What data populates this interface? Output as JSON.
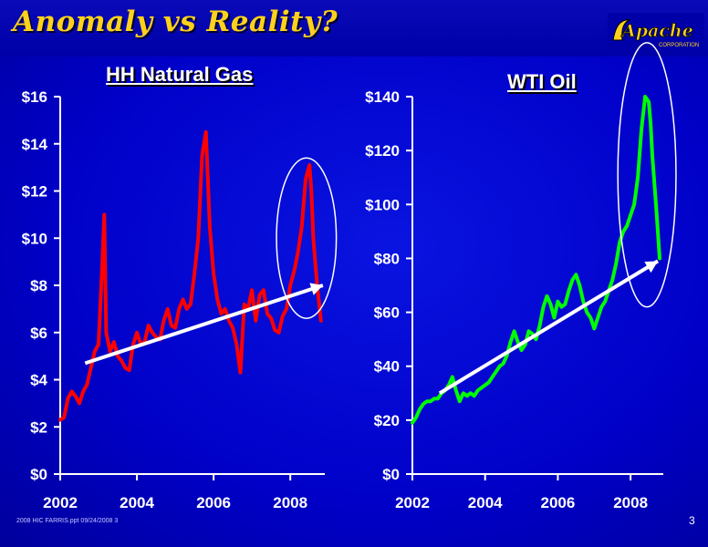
{
  "slide": {
    "title": "Anomaly vs Reality?",
    "footer": "2008 HIC FARRIS.ppt  09/24/2008 3",
    "page_number": "3",
    "logo": {
      "main_text": "Apache",
      "sub_text": "CORPORATION",
      "icon": "apache-logo-icon"
    }
  },
  "colors": {
    "background": "#0000c8",
    "title": "#ffd21a",
    "gas_series": "#ff0000",
    "oil_series": "#00ff00",
    "trend_arrow": "#ffffff",
    "highlight_ellipse": "#ffffff"
  },
  "chart_data": [
    {
      "type": "line",
      "title": "HH Natural Gas",
      "xlabel": "",
      "ylabel": "",
      "xlim": [
        2002,
        2008.9
      ],
      "ylim": [
        0,
        16
      ],
      "x_ticks": [
        "2002",
        "2004",
        "2006",
        "2008"
      ],
      "y_ticks": [
        "$0",
        "$2",
        "$4",
        "$6",
        "$8",
        "$10",
        "$12",
        "$14",
        "$16"
      ],
      "grid": false,
      "series": [
        {
          "x": [
            2002.0,
            2002.1,
            2002.2,
            2002.3,
            2002.4,
            2002.5,
            2002.6,
            2002.7,
            2002.8,
            2002.9,
            2003.0,
            2003.1,
            2003.15,
            2003.2,
            2003.3,
            2003.4,
            2003.5,
            2003.6,
            2003.7,
            2003.8,
            2003.9,
            2004.0,
            2004.1,
            2004.2,
            2004.3,
            2004.4,
            2004.5,
            2004.6,
            2004.7,
            2004.8,
            2004.9,
            2005.0,
            2005.1,
            2005.2,
            2005.3,
            2005.4,
            2005.5,
            2005.6,
            2005.7,
            2005.8,
            2005.9,
            2006.0,
            2006.1,
            2006.2,
            2006.3,
            2006.4,
            2006.5,
            2006.6,
            2006.7,
            2006.8,
            2006.9,
            2007.0,
            2007.1,
            2007.2,
            2007.3,
            2007.4,
            2007.5,
            2007.6,
            2007.7,
            2007.8,
            2007.9,
            2008.0,
            2008.1,
            2008.2,
            2008.3,
            2008.4,
            2008.5,
            2008.55,
            2008.6,
            2008.7,
            2008.8
          ],
          "y": [
            2.3,
            2.4,
            3.2,
            3.5,
            3.3,
            3.0,
            3.5,
            3.8,
            4.5,
            5.2,
            5.5,
            9.0,
            11.0,
            6.0,
            5.2,
            5.6,
            5.0,
            4.8,
            4.5,
            4.4,
            5.5,
            6.0,
            5.5,
            5.6,
            6.3,
            6.0,
            5.8,
            5.7,
            6.5,
            7.0,
            6.3,
            6.2,
            7.0,
            7.4,
            7.0,
            7.2,
            8.5,
            10.0,
            13.5,
            14.5,
            10.5,
            8.5,
            7.4,
            6.8,
            7.0,
            6.5,
            6.2,
            5.5,
            4.3,
            7.2,
            7.0,
            7.8,
            6.5,
            7.6,
            7.8,
            6.8,
            6.6,
            6.1,
            6.0,
            6.7,
            7.0,
            8.0,
            8.6,
            9.4,
            10.5,
            12.5,
            13.1,
            12.0,
            10.0,
            8.0,
            6.5
          ]
        }
      ],
      "trend": {
        "x": [
          2002.65,
          2008.85
        ],
        "y": [
          4.7,
          8.0
        ]
      },
      "highlight": {
        "center": [
          2008.42,
          10.0
        ],
        "rx": 0.78,
        "ry": 3.4
      }
    },
    {
      "type": "line",
      "title": "WTI Oil",
      "xlabel": "",
      "ylabel": "",
      "xlim": [
        2002,
        2008.9
      ],
      "ylim": [
        0,
        140
      ],
      "x_ticks": [
        "2002",
        "2004",
        "2006",
        "2008"
      ],
      "y_ticks": [
        "$0",
        "$20",
        "$40",
        "$60",
        "$80",
        "$100",
        "$120",
        "$140"
      ],
      "grid": false,
      "series": [
        {
          "x": [
            2002.0,
            2002.1,
            2002.2,
            2002.3,
            2002.4,
            2002.5,
            2002.6,
            2002.7,
            2002.8,
            2002.9,
            2003.0,
            2003.1,
            2003.2,
            2003.3,
            2003.4,
            2003.5,
            2003.6,
            2003.7,
            2003.8,
            2003.9,
            2004.0,
            2004.1,
            2004.2,
            2004.3,
            2004.4,
            2004.5,
            2004.6,
            2004.7,
            2004.8,
            2004.9,
            2005.0,
            2005.1,
            2005.2,
            2005.3,
            2005.4,
            2005.5,
            2005.6,
            2005.7,
            2005.8,
            2005.9,
            2006.0,
            2006.1,
            2006.2,
            2006.3,
            2006.4,
            2006.5,
            2006.6,
            2006.7,
            2006.8,
            2006.9,
            2007.0,
            2007.1,
            2007.2,
            2007.3,
            2007.4,
            2007.5,
            2007.6,
            2007.7,
            2007.8,
            2007.9,
            2008.0,
            2008.1,
            2008.2,
            2008.3,
            2008.4,
            2008.5,
            2008.55,
            2008.6,
            2008.7,
            2008.8
          ],
          "y": [
            19,
            21,
            24,
            26,
            27,
            27,
            28,
            28,
            30,
            31,
            33,
            36,
            31,
            27,
            30,
            29,
            30,
            29,
            31,
            32,
            33,
            34,
            36,
            38,
            40,
            41,
            44,
            49,
            53,
            49,
            46,
            48,
            53,
            52,
            50,
            55,
            62,
            66,
            63,
            58,
            64,
            62,
            63,
            68,
            72,
            74,
            70,
            64,
            60,
            58,
            54,
            58,
            62,
            64,
            68,
            72,
            78,
            86,
            90,
            92,
            96,
            100,
            110,
            128,
            140,
            138,
            130,
            118,
            100,
            80
          ]
        }
      ],
      "trend": {
        "x": [
          2002.75,
          2008.75
        ],
        "y": [
          30,
          79
        ]
      },
      "highlight": {
        "center": [
          2008.45,
          111
        ],
        "rx": 0.8,
        "ry": 49
      }
    }
  ]
}
